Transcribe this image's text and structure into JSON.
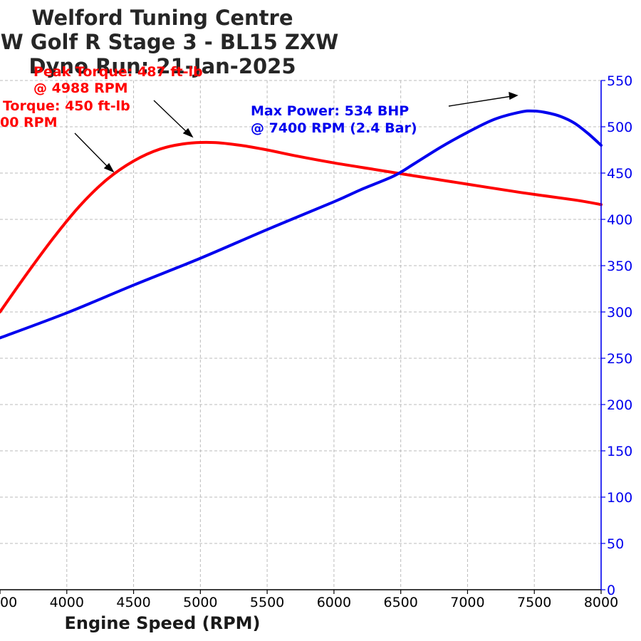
{
  "chart_data": {
    "type": "line",
    "title_lines": [
      "Welford Tuning Centre",
      "W Golf R Stage 3 - BL15 ZXW",
      "Dyno Run: 21-Jan-2025"
    ],
    "xlabel": "Engine Speed (RPM)",
    "xlim": [
      3500,
      8000
    ],
    "y2lim": [
      0,
      550
    ],
    "grid": true,
    "x_ticks": [
      "00",
      "4000",
      "4500",
      "5000",
      "5500",
      "6000",
      "6500",
      "7000",
      "7500",
      "8000"
    ],
    "y2_ticks": [
      "0",
      "50",
      "100",
      "150",
      "200",
      "250",
      "300",
      "350",
      "400",
      "450",
      "500",
      "550"
    ],
    "series": [
      {
        "color": "#ff0000",
        "axis": "left",
        "x": [
          3500,
          3700,
          3900,
          4100,
          4300,
          4500,
          4700,
          4900,
          5100,
          5300,
          5500,
          5700,
          6000,
          6300,
          6600,
          7000,
          7400,
          7800,
          8000
        ],
        "y": [
          300,
          341,
          380,
          415,
          443,
          463,
          476,
          482,
          483,
          480,
          475,
          469,
          461,
          454,
          447,
          438,
          429,
          421,
          416
        ]
      },
      {
        "color": "#0000ee",
        "axis": "right",
        "x": [
          3500,
          4000,
          4500,
          5000,
          5500,
          6000,
          6200,
          6450,
          6600,
          6800,
          7000,
          7200,
          7400,
          7500,
          7600,
          7700,
          7800,
          7900,
          8000
        ],
        "y": [
          272,
          299,
          329,
          358,
          389,
          419,
          432,
          447,
          460,
          478,
          494,
          508,
          516,
          517,
          515,
          511,
          504,
          493,
          480
        ]
      }
    ],
    "annotations": [
      {
        "lines": [
          "Peak Torque: 487 ft-lb",
          "@ 4988 RPM"
        ],
        "color": "#ff0000"
      },
      {
        "lines": [
          "Torque: 450 ft-lb",
          "00 RPM"
        ],
        "color": "#ff0000"
      },
      {
        "lines": [
          "Max Power: 534 BHP",
          "@ 7400 RPM (2.4 Bar)"
        ],
        "color": "#0000ee"
      }
    ],
    "colors": {
      "torque": "#ff0000",
      "power": "#0000ee",
      "grid": "#bbbbbb"
    }
  }
}
